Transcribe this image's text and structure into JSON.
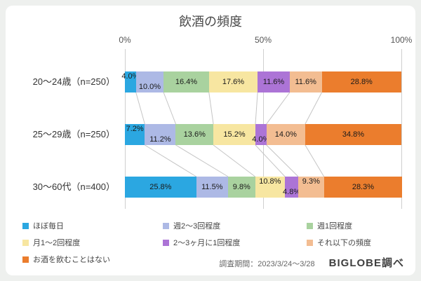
{
  "page": {
    "footer": {
      "survey_period": "調査期間：2023/3/24〜3/28",
      "credit": "BIGLOBE調べ"
    }
  },
  "chart_data": {
    "type": "bar",
    "variant": "horizontal-stacked-100pct",
    "title": "飲酒の頻度",
    "x_ticks": [
      "0%",
      "50%",
      "100%"
    ],
    "xlim": [
      0,
      100
    ],
    "value_suffix": "%",
    "grid": "vertical-lines-at-0-50-100",
    "legend_position": "bottom-left",
    "categories": [
      "20〜24歳（n=250）",
      "25〜29歳（n=250）",
      "30〜60代（n=400）"
    ],
    "series": [
      {
        "name": "ほぼ毎日",
        "color": "#2BA7E1",
        "values": [
          4.0,
          7.2,
          25.8
        ]
      },
      {
        "name": "週2〜3回程度",
        "color": "#ADB9E5",
        "values": [
          10.0,
          11.2,
          11.5
        ]
      },
      {
        "name": "週1回程度",
        "color": "#A9D29F",
        "values": [
          16.4,
          13.6,
          9.8
        ]
      },
      {
        "name": "月1〜2回程度",
        "color": "#F7E6A1",
        "values": [
          17.6,
          15.2,
          10.8
        ]
      },
      {
        "name": "2〜3ヶ月に1回程度",
        "color": "#AC74D6",
        "values": [
          11.6,
          4.0,
          4.8
        ]
      },
      {
        "name": "それ以下の頻度",
        "color": "#F3BD92",
        "values": [
          11.6,
          14.0,
          9.3
        ]
      },
      {
        "name": "お酒を飲むことはない",
        "color": "#EB7D2D",
        "values": [
          28.8,
          34.8,
          28.3
        ]
      }
    ],
    "label_offsets": [
      [
        "u",
        "d",
        "c",
        "c",
        "c",
        "c",
        "c"
      ],
      [
        "u",
        "d",
        "c",
        "c",
        "d",
        "c",
        "c"
      ],
      [
        "c",
        "c",
        "c",
        "u",
        "d",
        "u",
        "c"
      ]
    ]
  }
}
